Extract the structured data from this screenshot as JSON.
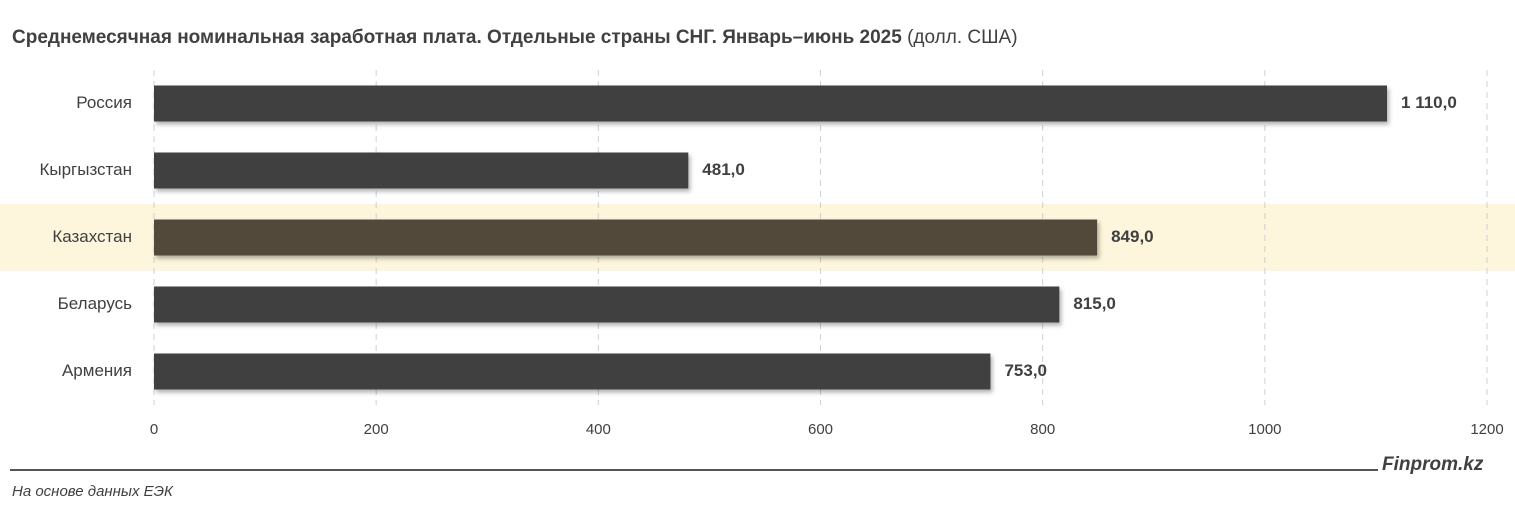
{
  "chart_data": {
    "type": "bar",
    "orientation": "horizontal",
    "title": "Среднемесячная номинальная заработная плата. Отдельные страны СНГ. Январь–июнь 2025",
    "title_unit": "(долл. США)",
    "categories": [
      "Россия",
      "Кыргызстан",
      "Казахстан",
      "Беларусь",
      "Армения"
    ],
    "values": [
      1110,
      481,
      849,
      815,
      753
    ],
    "value_labels": [
      "1 110,0",
      "481,0",
      "849,0",
      "815,0",
      "753,0"
    ],
    "colors": [
      "#404040",
      "#404040",
      "#524a3a",
      "#404040",
      "#404040"
    ],
    "highlight_index": 2,
    "highlight_color": "#fdf5dc",
    "xlim": [
      0,
      1200
    ],
    "xticks": [
      0,
      200,
      400,
      600,
      800,
      1000,
      1200
    ],
    "grid": true,
    "brand": "Finprom.kz",
    "source": "На основе данных ЕЭК"
  }
}
